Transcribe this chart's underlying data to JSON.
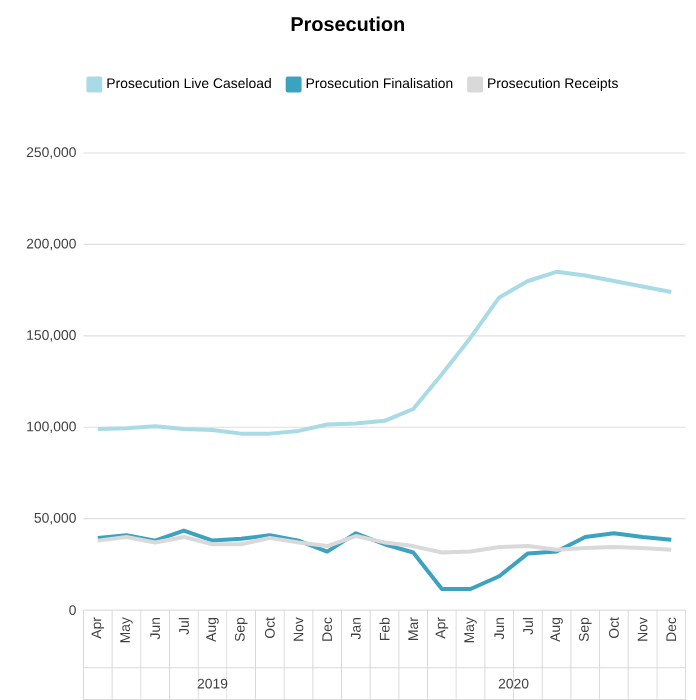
{
  "chart_data": {
    "type": "line",
    "title": "Prosecution",
    "x": [
      "2019-04",
      "2019-05",
      "2019-06",
      "2019-07",
      "2019-08",
      "2019-09",
      "2019-10",
      "2019-11",
      "2019-12",
      "2020-01",
      "2020-02",
      "2020-03",
      "2020-04",
      "2020-05",
      "2020-06",
      "2020-07",
      "2020-08",
      "2020-09",
      "2020-10",
      "2020-11",
      "2020-12"
    ],
    "xlim": [
      "2019-03-16",
      "2020-12-16"
    ],
    "xticks": [
      {
        "value": "2019-04",
        "label": "Apr"
      },
      {
        "value": "2019-05",
        "label": "May"
      },
      {
        "value": "2019-06",
        "label": "Jun"
      },
      {
        "value": "2019-07",
        "label": "Jul"
      },
      {
        "value": "2019-08",
        "label": "Aug"
      },
      {
        "value": "2019-09",
        "label": "Sep"
      },
      {
        "value": "2019-10",
        "label": "Oct"
      },
      {
        "value": "2019-11",
        "label": "Nov"
      },
      {
        "value": "2019-12",
        "label": "Dec"
      },
      {
        "value": "2020-01",
        "label": "Jan"
      },
      {
        "value": "2020-02",
        "label": "Feb"
      },
      {
        "value": "2020-03",
        "label": "Mar"
      },
      {
        "value": "2020-04",
        "label": "Apr"
      },
      {
        "value": "2020-05",
        "label": "May"
      },
      {
        "value": "2020-06",
        "label": "Jun"
      },
      {
        "value": "2020-07",
        "label": "Jul"
      },
      {
        "value": "2020-08",
        "label": "Aug"
      },
      {
        "value": "2020-09",
        "label": "Sep"
      },
      {
        "value": "2020-10",
        "label": "Oct"
      },
      {
        "value": "2020-11",
        "label": "Nov"
      },
      {
        "value": "2020-12",
        "label": "Dec"
      }
    ],
    "series": [
      {
        "name": "Prosecution Live Caseload",
        "color": "#a8dbe6",
        "values": [
          99000,
          99500,
          100500,
          99000,
          98500,
          96500,
          96500,
          98000,
          101500,
          102000,
          103500,
          110000,
          129000,
          149000,
          171000,
          180000,
          185000,
          183000,
          180000,
          177000,
          174000
        ]
      },
      {
        "name": "Prosecution Finalisation",
        "color": "#3ba3c0",
        "values": [
          39500,
          41000,
          38000,
          43500,
          38000,
          39000,
          41000,
          38000,
          32000,
          42000,
          36000,
          31500,
          11500,
          11500,
          18500,
          31000,
          32000,
          40000,
          42000,
          40000,
          38500
        ]
      },
      {
        "name": "Prosecution Receipts",
        "color": "#d9d9d9",
        "values": [
          38000,
          40000,
          37000,
          40000,
          36000,
          36000,
          39500,
          37000,
          35000,
          40500,
          37000,
          35000,
          31500,
          32000,
          34500,
          35000,
          33000,
          34000,
          34500,
          34000,
          33000
        ]
      }
    ],
    "ylim": [
      0,
      250000
    ],
    "yticks": [
      {
        "value": 0,
        "label": "0"
      },
      {
        "value": 50000,
        "label": "50,000"
      },
      {
        "value": 100000,
        "label": "100,000"
      },
      {
        "value": 150000,
        "label": "150,000"
      },
      {
        "value": 200000,
        "label": "200,000"
      },
      {
        "value": 250000,
        "label": "250,000"
      }
    ],
    "grid": "y",
    "legend": "top",
    "marker": "none",
    "line_style": "solid",
    "annotations": [
      "2019",
      "2020"
    ]
  }
}
